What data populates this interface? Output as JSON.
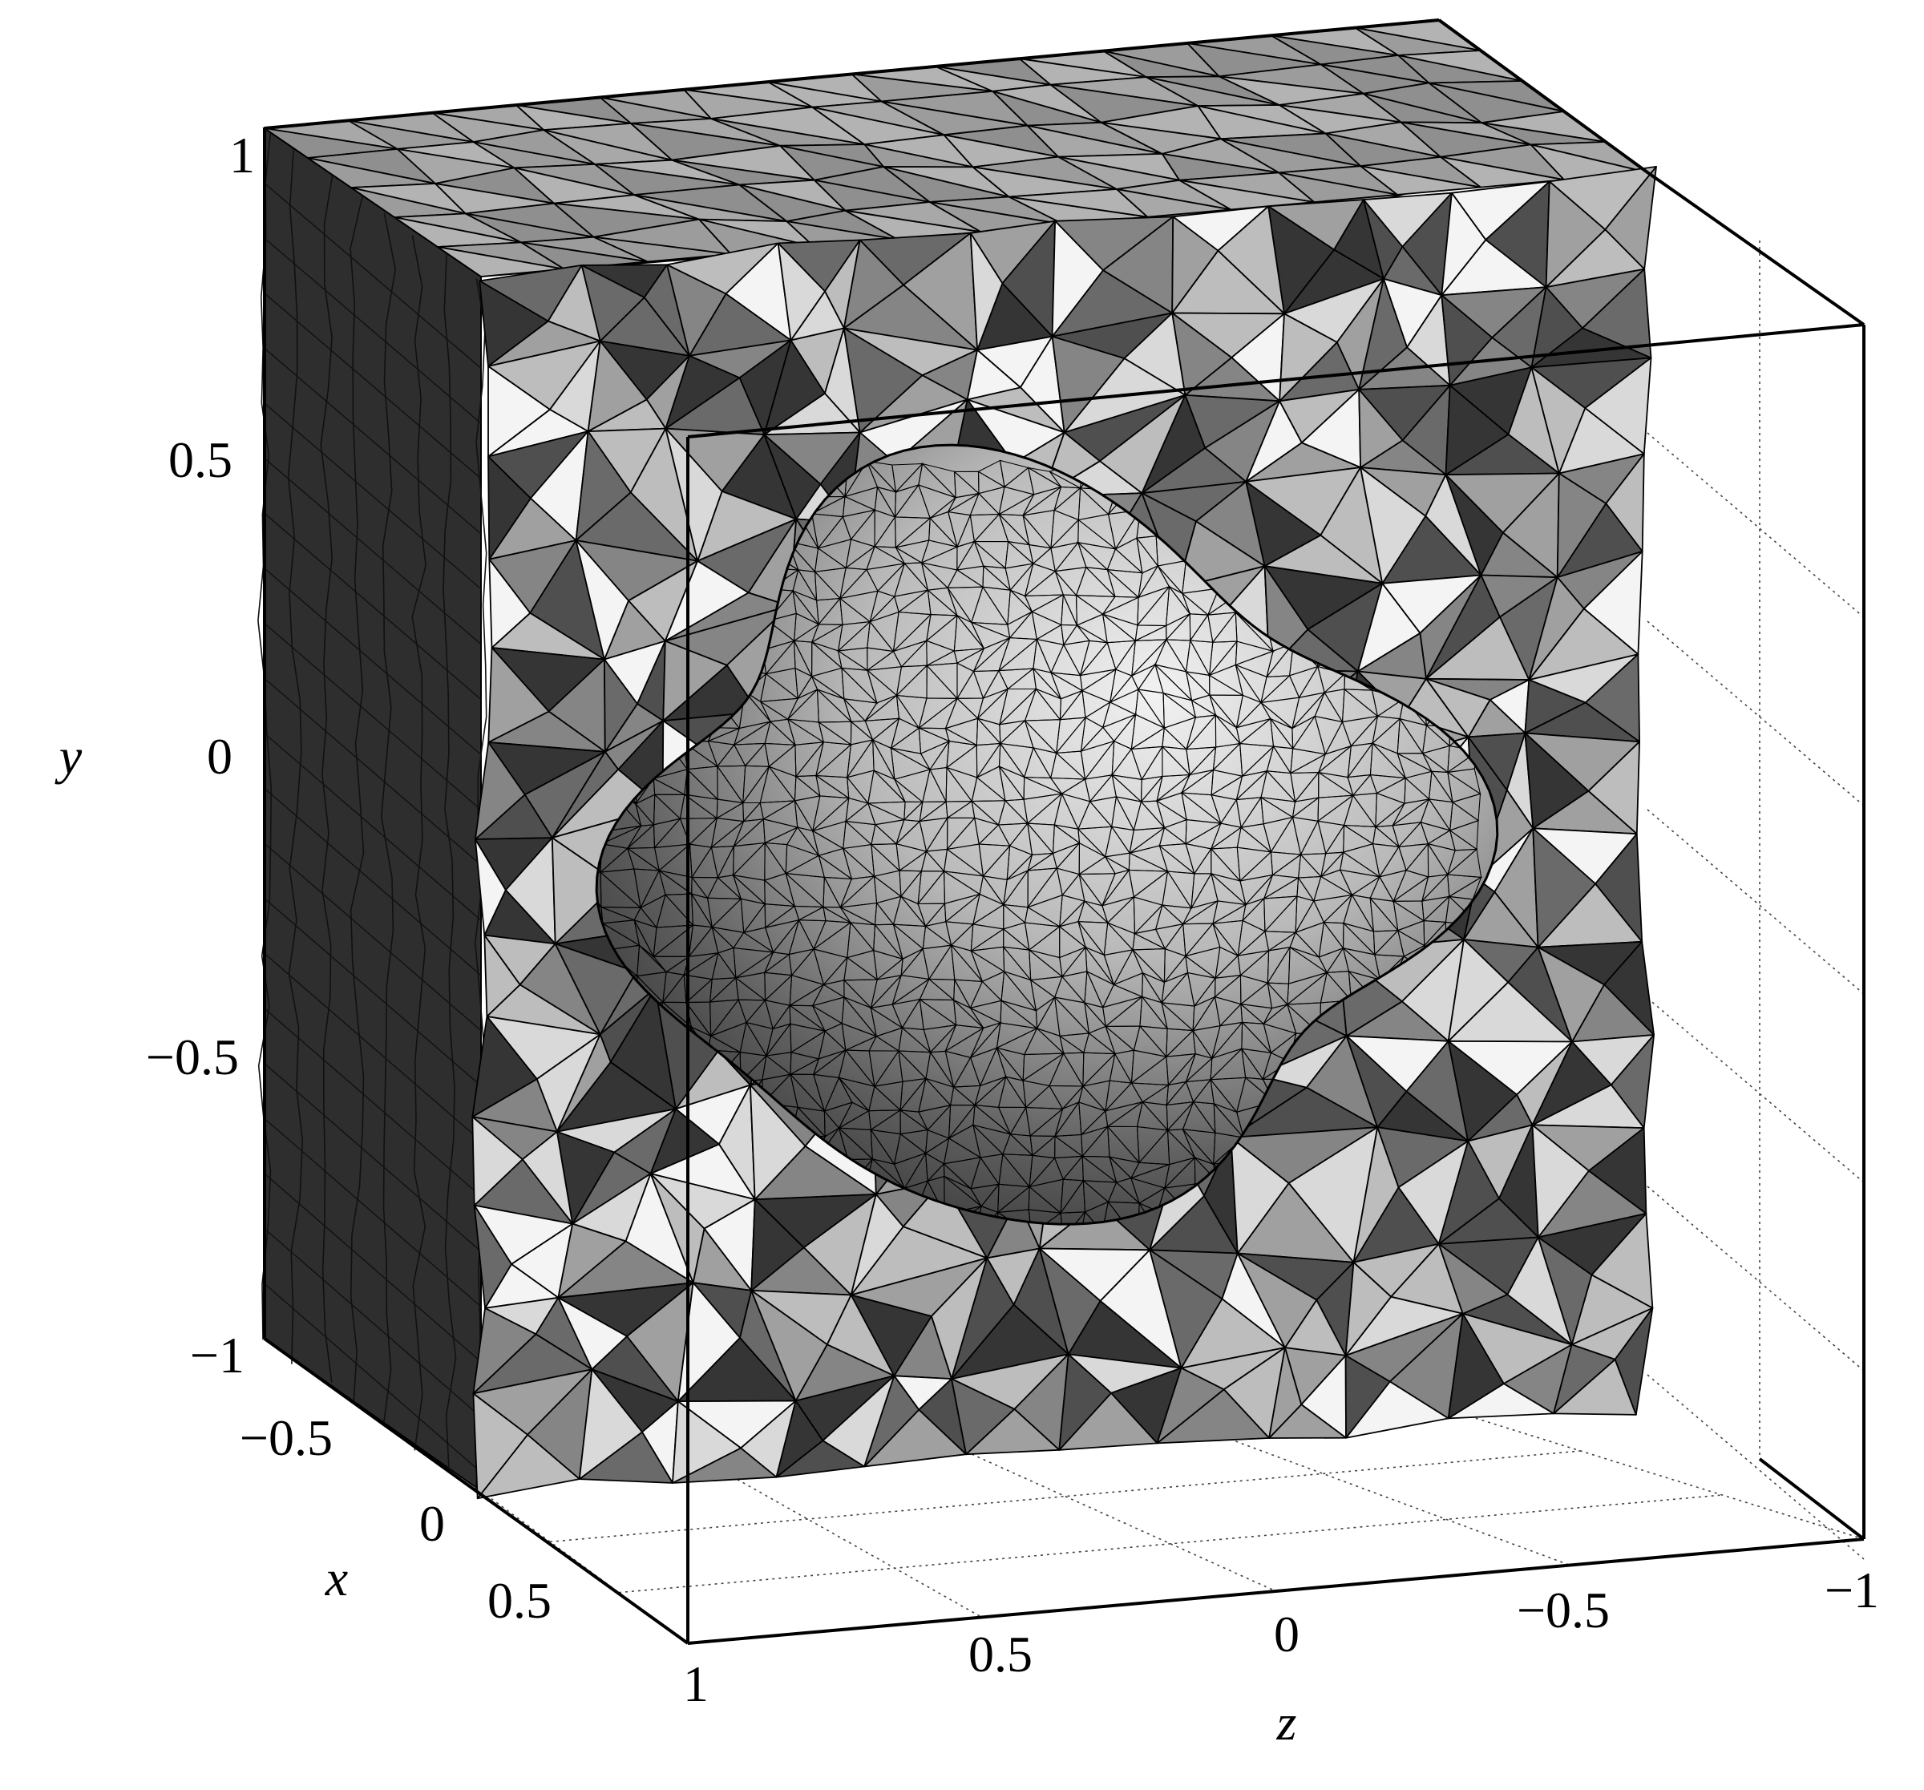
{
  "axes": {
    "x": {
      "label": "x",
      "ticks": [
        "−0.5",
        "0",
        "0.5"
      ]
    },
    "y": {
      "label": "y",
      "ticks": [
        "1",
        "0.5",
        "0",
        "−0.5",
        "−1"
      ]
    },
    "z": {
      "label": "z",
      "ticks": [
        "1",
        "0.5",
        "0",
        "−0.5",
        "−1"
      ]
    }
  },
  "colors": {
    "background": "#ffffff",
    "frame": "#000000",
    "left_face": "#2e2e2e",
    "mesh_shades": [
      "#f4f4f4",
      "#d9d9d9",
      "#bdbdbd",
      "#a0a0a0",
      "#858585",
      "#6a6a6a",
      "#4f4f4f",
      "#353535"
    ]
  },
  "icons": {
    "mesh": "tetrahedral-mesh-with-embedded-blob-surface"
  }
}
